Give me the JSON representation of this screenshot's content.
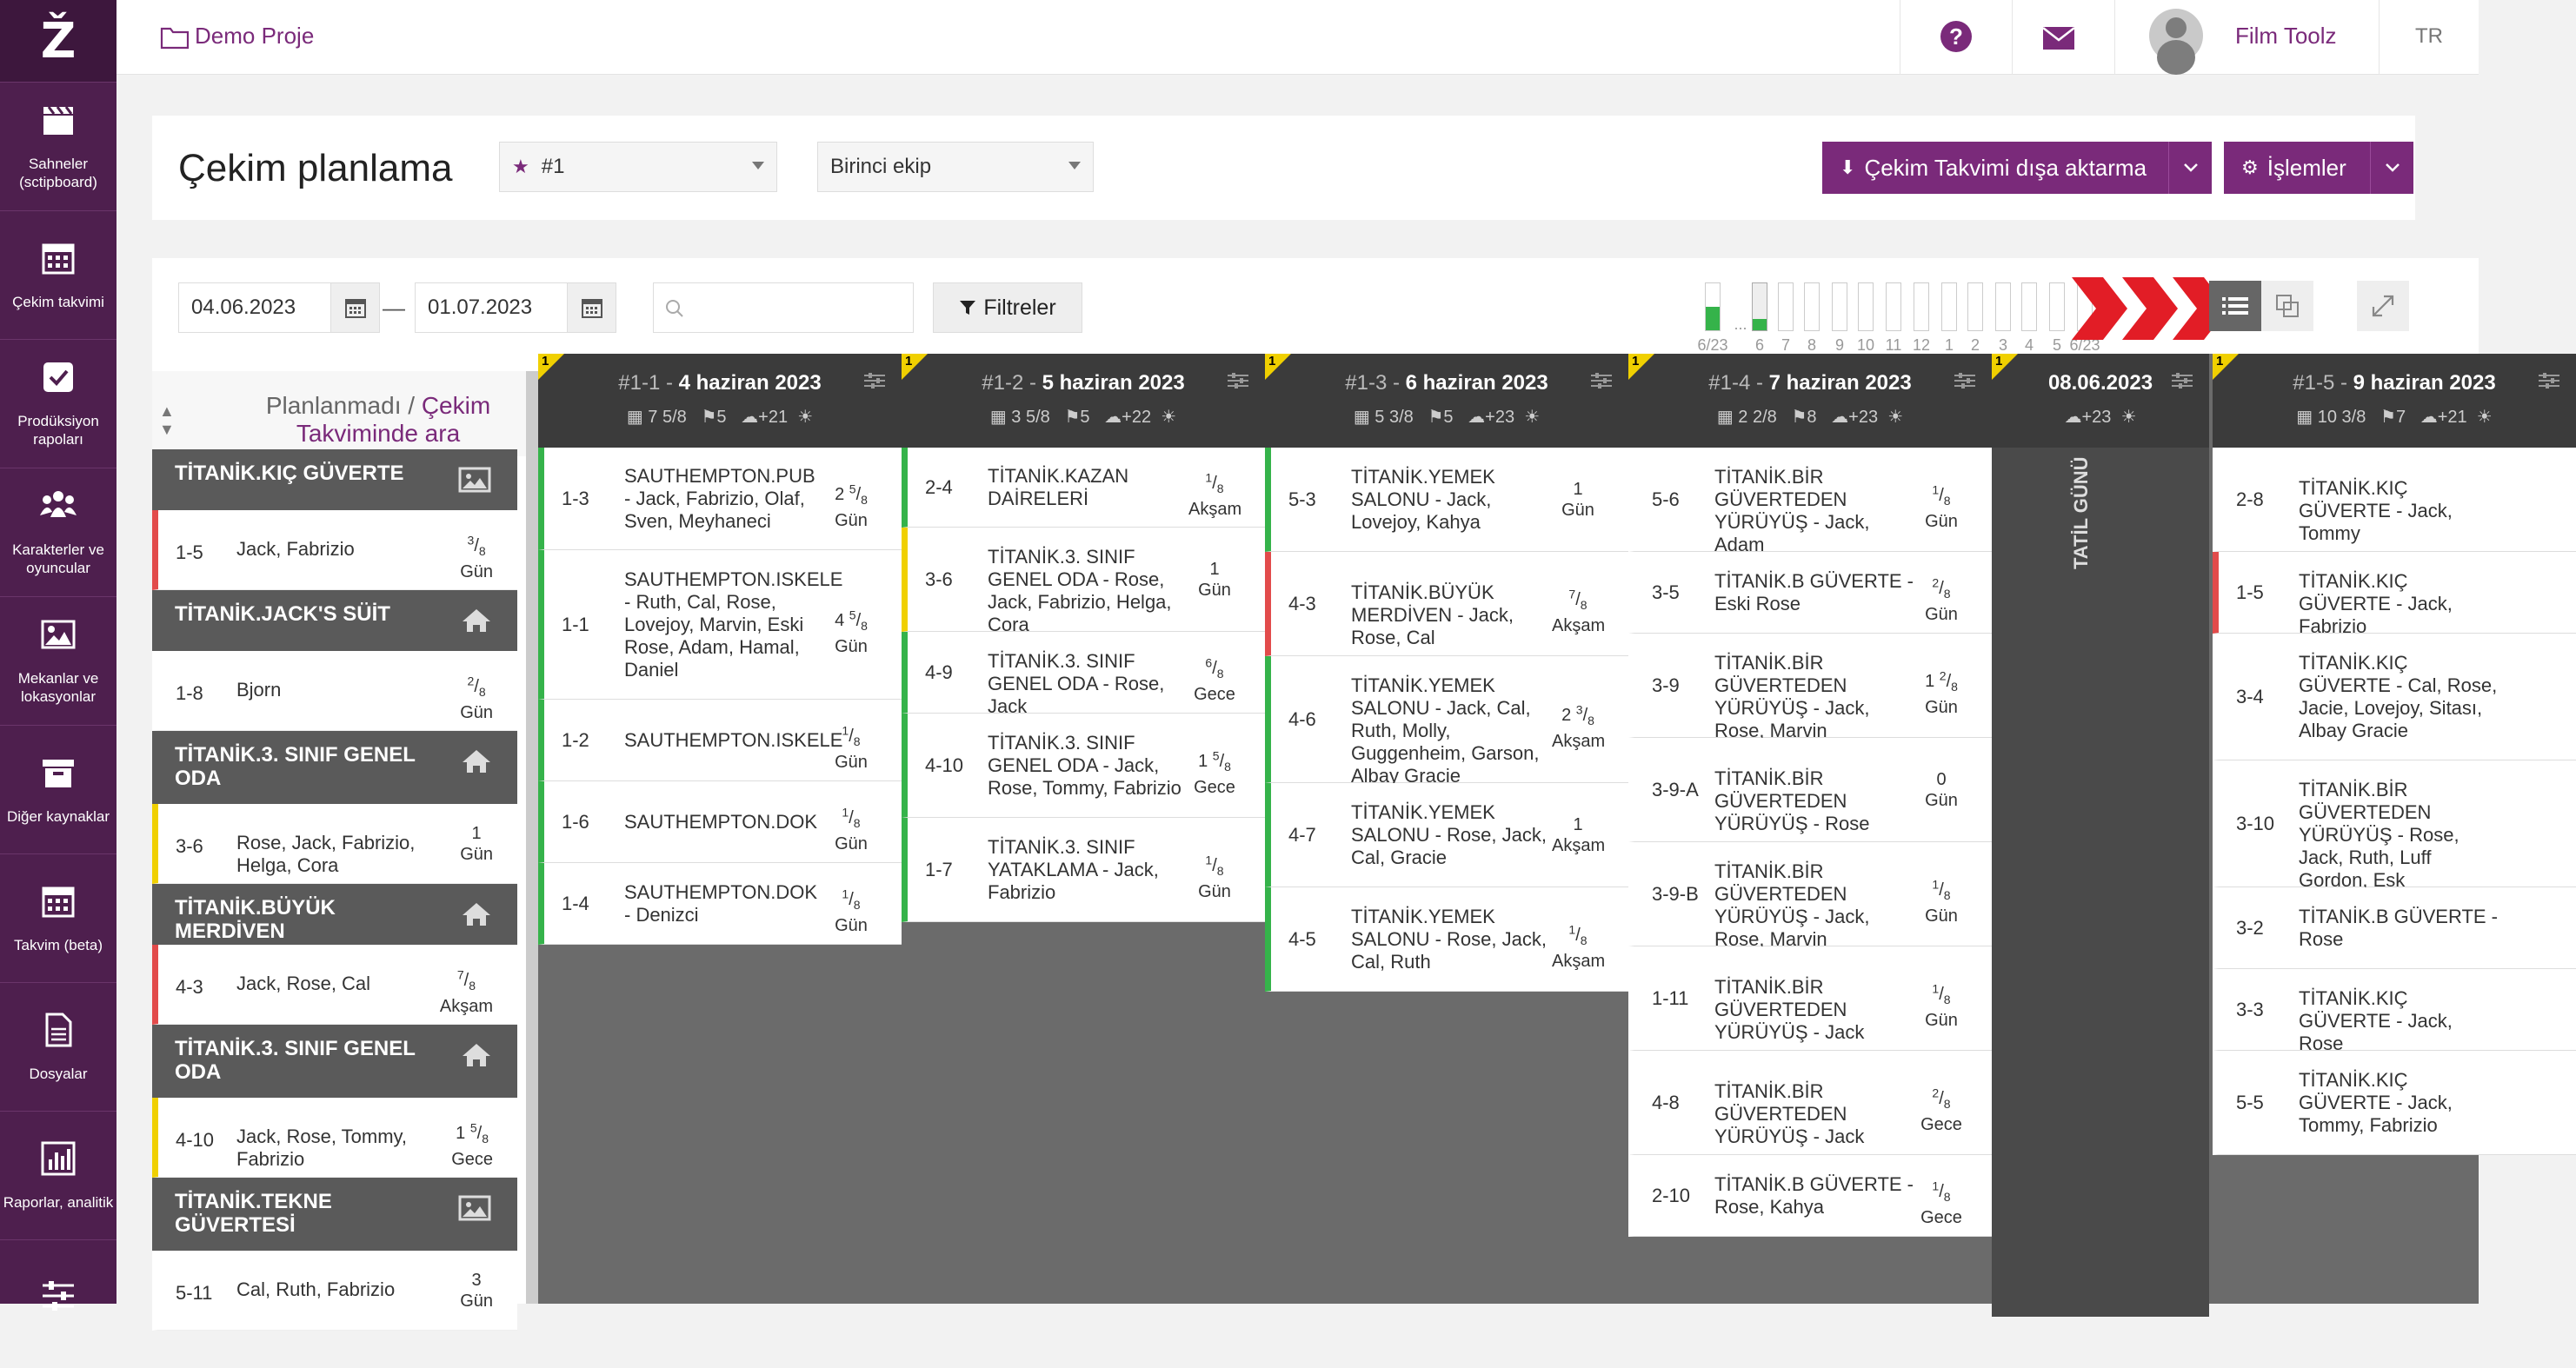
{
  "app": {
    "logo": "Ž",
    "project": "Demo Proje",
    "user": "Film Toolz",
    "lang": "TR"
  },
  "sidebar": [
    {
      "label": "Sahneler (sctipboard)",
      "icon": "clapper-icon"
    },
    {
      "label": "Çekim takvimi",
      "icon": "calendar-icon"
    },
    {
      "label": "Prodüksiyon rapoları",
      "icon": "checkbox-icon"
    },
    {
      "label": "Karakterler ve oyuncular",
      "icon": "people-icon"
    },
    {
      "label": "Mekanlar ve lokasyonlar",
      "icon": "image-icon"
    },
    {
      "label": "Diğer kaynaklar",
      "icon": "archive-icon"
    },
    {
      "label": "Takvim (beta)",
      "icon": "calendar-icon"
    },
    {
      "label": "Dosyalar",
      "icon": "file-icon"
    },
    {
      "label": "Raporlar, analitik",
      "icon": "chart-icon"
    },
    {
      "label": "",
      "icon": "sliders-icon"
    }
  ],
  "header": {
    "title": "Çekim planlama",
    "schedule_select": "#1",
    "crew_select": "Birinci ekip",
    "export_btn": "Çekim Takvimi dışa aktarma",
    "actions_btn": "İşlemler"
  },
  "toolbar": {
    "start_date": "04.06.2023",
    "dash": "—",
    "end_date": "01.07.2023",
    "search_placeholder": "",
    "filters": "Filtreler"
  },
  "minimap": {
    "labels": [
      "6/23",
      "...",
      "6",
      "7",
      "8",
      "9",
      "10",
      "11",
      "12",
      "1",
      "2",
      "3",
      "4",
      "5",
      "6/23"
    ],
    "fills": [
      0.5,
      0,
      0.25,
      0,
      0,
      0,
      0,
      0,
      0,
      0,
      0,
      0,
      0,
      0,
      0
    ]
  },
  "unplanned": {
    "title_a": "Planlanmadı / ",
    "title_b": "Çekim Takviminde ara",
    "groups": [
      {
        "loc": "TİTANİK.KIÇ GÜVERTE",
        "icon": "image-icon",
        "scenes": [
          {
            "n": "1-5",
            "d": "Jack, Fabrizio",
            "p": "3/8",
            "u": "Gün",
            "c": "#e24b4b"
          }
        ]
      },
      {
        "loc": "TİTANİK.JACK'S SÜİT",
        "icon": "home-icon",
        "scenes": [
          {
            "n": "1-8",
            "d": "Bjorn",
            "p": "2/8",
            "u": "Gün",
            "c": "#ffffff"
          }
        ]
      },
      {
        "loc": "TİTANİK.3. SINIF GENEL ODA",
        "icon": "home-icon",
        "scenes": [
          {
            "n": "3-6",
            "d": "Rose, Jack, Fabrizio, Helga, Cora",
            "p": "1",
            "u": "Gün",
            "c": "#f0d000"
          }
        ]
      },
      {
        "loc": "TİTANİK.BÜYÜK MERDİVEN",
        "icon": "home-icon",
        "scenes": [
          {
            "n": "4-3",
            "d": "Jack, Rose, Cal",
            "p": "7/8",
            "u": "Akşam",
            "c": "#e24b4b"
          }
        ]
      },
      {
        "loc": "TİTANİK.3. SINIF GENEL ODA",
        "icon": "home-icon",
        "scenes": [
          {
            "n": "4-10",
            "d": "Jack, Rose, Tommy, Fabrizio",
            "p": "1 5/8",
            "u": "Gece",
            "c": "#f0d000"
          }
        ]
      },
      {
        "loc": "TİTANİK.TEKNE GÜVERTESİ",
        "icon": "image-icon",
        "scenes": [
          {
            "n": "5-11",
            "d": "Cal, Ruth, Fabrizio",
            "p": "3",
            "u": "Gün",
            "c": "#ffffff"
          }
        ]
      }
    ]
  },
  "days": [
    {
      "id": "#1-1",
      "sep": " - ",
      "date": "4 haziran 2023",
      "pages": "7 5/8",
      "scenes": "5",
      "weather": "+21",
      "cards": [
        {
          "n": "1-3",
          "d": "SAUTHEMPTON.PUB - Jack, Fabrizio, Olaf, Sven, Meyhaneci",
          "p": "2 5/8",
          "u": "Gün",
          "c": "#35b34a",
          "h": 118
        },
        {
          "n": "1-1",
          "d": "SAUTHEMPTON.ISKELE - Ruth, Cal, Rose, Lovejoy, Marvin, Eski Rose, Adam, Hamal, Daniel",
          "p": "4 5/8",
          "u": "Gün",
          "c": "#35b34a",
          "h": 172
        },
        {
          "n": "1-2",
          "d": "SAUTHEMPTON.ISKELE",
          "p": "1/8",
          "u": "Gün",
          "c": "#35b34a",
          "h": 94
        },
        {
          "n": "1-6",
          "d": "SAUTHEMPTON.DOK",
          "p": "1/8",
          "u": "Gün",
          "c": "#35b34a",
          "h": 94
        },
        {
          "n": "1-4",
          "d": "SAUTHEMPTON.DOK - Denizci",
          "p": "1/8",
          "u": "Gün",
          "c": "#35b34a",
          "h": 94
        }
      ]
    },
    {
      "id": "#1-2",
      "sep": " - ",
      "date": "5 haziran 2023",
      "pages": "3 5/8",
      "scenes": "5",
      "weather": "+22",
      "cards": [
        {
          "n": "2-4",
          "d": "TİTANİK.KAZAN DAİRELERİ",
          "p": "1/8",
          "u": "Akşam",
          "c": "#35b34a",
          "h": 92
        },
        {
          "n": "3-6",
          "d": "TİTANİK.3. SINIF GENEL ODA - Rose, Jack, Fabrizio, Helga, Cora",
          "p": "1",
          "u": "Gün",
          "c": "#f0d000",
          "h": 120
        },
        {
          "n": "4-9",
          "d": "TİTANİK.3. SINIF GENEL ODA - Rose, Jack",
          "p": "6/8",
          "u": "Gece",
          "c": "#35b34a",
          "h": 94
        },
        {
          "n": "4-10",
          "d": "TİTANİK.3. SINIF GENEL ODA - Jack, Rose, Tommy, Fabrizio",
          "p": "1 5/8",
          "u": "Gece",
          "c": "#35b34a",
          "h": 120
        },
        {
          "n": "1-7",
          "d": "TİTANİK.3. SINIF YATAKLAMA - Jack, Fabrizio",
          "p": "1/8",
          "u": "Gün",
          "c": "#35b34a",
          "h": 120
        }
      ]
    },
    {
      "id": "#1-3",
      "sep": " - ",
      "date": "6 haziran 2023",
      "pages": "5 3/8",
      "scenes": "5",
      "weather": "+23",
      "cards": [
        {
          "n": "5-3",
          "d": "TİTANİK.YEMEK SALONU - Jack, Lovejoy, Kahya",
          "p": "1",
          "u": "Gün",
          "c": "#35b34a",
          "h": 120
        },
        {
          "n": "4-3",
          "d": "TİTANİK.BÜYÜK MERDİVEN - Jack, Rose, Cal",
          "p": "7/8",
          "u": "Akşam",
          "c": "#e24b4b",
          "h": 120
        },
        {
          "n": "4-6",
          "d": "TİTANİK.YEMEK SALONU - Jack, Cal, Ruth, Molly, Guggenheim, Garson, Albay Gracie",
          "p": "2 3/8",
          "u": "Akşam",
          "c": "#35b34a",
          "h": 146
        },
        {
          "n": "4-7",
          "d": "TİTANİK.YEMEK SALONU - Rose, Jack, Cal, Gracie",
          "p": "1",
          "u": "Akşam",
          "c": "#35b34a",
          "h": 120
        },
        {
          "n": "4-5",
          "d": "TİTANİK.YEMEK SALONU - Rose, Jack, Cal, Ruth",
          "p": "1/8",
          "u": "Akşam",
          "c": "#35b34a",
          "h": 120
        }
      ]
    },
    {
      "id": "#1-4",
      "sep": " - ",
      "date": "7 haziran 2023",
      "pages": "2 2/8",
      "scenes": "8",
      "weather": "+23",
      "cards": [
        {
          "n": "5-6",
          "d": "TİTANİK.BİR GÜVERTEDEN YÜRÜYÜŞ - Jack, Adam",
          "p": "1/8",
          "u": "Gün",
          "c": "#ffffff",
          "h": 120
        },
        {
          "n": "3-5",
          "d": "TİTANİK.B GÜVERTE - Eski Rose",
          "p": "2/8",
          "u": "Gün",
          "c": "#ffffff",
          "h": 94
        },
        {
          "n": "3-9",
          "d": "TİTANİK.BİR GÜVERTEDEN YÜRÜYÜŞ - Jack, Rose, Marvin",
          "p": "1 2/8",
          "u": "Gün",
          "c": "#ffffff",
          "h": 120
        },
        {
          "n": "3-9-A",
          "d": "TİTANİK.BİR GÜVERTEDEN YÜRÜYÜŞ - Rose",
          "p": "0",
          "u": "Gün",
          "c": "#ffffff",
          "h": 120
        },
        {
          "n": "3-9-B",
          "d": "TİTANİK.BİR GÜVERTEDEN YÜRÜYÜŞ - Jack, Rose, Marvin",
          "p": "1/8",
          "u": "Gün",
          "c": "#ffffff",
          "h": 120
        },
        {
          "n": "1-11",
          "d": "TİTANİK.BİR GÜVERTEDEN YÜRÜYÜŞ - Jack",
          "p": "1/8",
          "u": "Gün",
          "c": "#ffffff",
          "h": 120
        },
        {
          "n": "4-8",
          "d": "TİTANİK.BİR GÜVERTEDEN YÜRÜYÜŞ - Jack",
          "p": "2/8",
          "u": "Gece",
          "c": "#ffffff",
          "h": 120
        },
        {
          "n": "2-10",
          "d": "TİTANİK.B GÜVERTE - Rose, Kahya",
          "p": "1/8",
          "u": "Gece",
          "c": "#ffffff",
          "h": 94
        }
      ]
    },
    {
      "id": "",
      "sep": "",
      "date": "08.06.2023",
      "pages": "",
      "scenes": "",
      "weather": "+23",
      "holiday": "TATİL GÜNÜ",
      "cards": []
    },
    {
      "id": "#1-5",
      "sep": " - ",
      "date": "9 haziran 2023",
      "pages": "10 3/8",
      "scenes": "7",
      "weather": "+21",
      "cards": [
        {
          "n": "2-8",
          "d": "TİTANİK.KIÇ GÜVERTE - Jack, Tommy",
          "p": "",
          "u": "",
          "c": "#ffffff",
          "h": 120
        },
        {
          "n": "1-5",
          "d": "TİTANİK.KIÇ GÜVERTE - Jack, Fabrizio",
          "p": "",
          "u": "",
          "c": "#e24b4b",
          "h": 94
        },
        {
          "n": "3-4",
          "d": "TİTANİK.KIÇ GÜVERTE - Cal, Rose, Jacie, Lovejoy, Sitası, Albay Gracie",
          "p": "",
          "u": "",
          "c": "#ffffff",
          "h": 146
        },
        {
          "n": "3-10",
          "d": "TİTANİK.BİR GÜVERTEDEN YÜRÜYÜŞ - Rose, Jack, Ruth, Luff Gordon, Esk",
          "p": "",
          "u": "",
          "c": "#ffffff",
          "h": 146
        },
        {
          "n": "3-2",
          "d": "TİTANİK.B GÜVERTE - Rose",
          "p": "",
          "u": "",
          "c": "#ffffff",
          "h": 94
        },
        {
          "n": "3-3",
          "d": "TİTANİK.KIÇ GÜVERTE - Jack, Rose",
          "p": "",
          "u": "",
          "c": "#ffffff",
          "h": 94
        },
        {
          "n": "5-5",
          "d": "TİTANİK.KIÇ GÜVERTE - Jack, Tommy, Fabrizio",
          "p": "",
          "u": "",
          "c": "#ffffff",
          "h": 120
        }
      ]
    }
  ],
  "colors": {
    "brand": "#7a2a7a",
    "sidebar": "#4e1f4e",
    "day_header": "#3b3b3b",
    "green": "#35b34a",
    "red": "#e24b4b",
    "yellow": "#f0d000"
  }
}
